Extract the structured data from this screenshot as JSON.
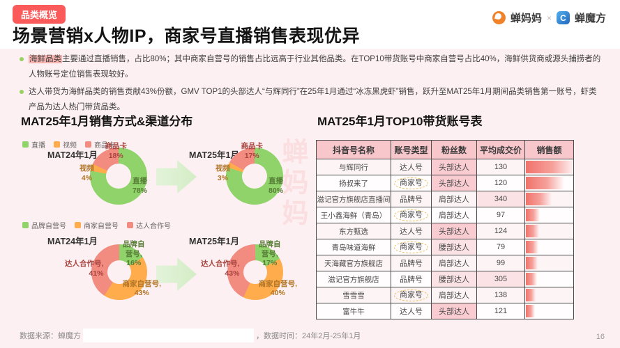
{
  "page": {
    "badge": "品类概览",
    "title": "场景营销x人物IP，商家号直播销售表现优异",
    "page_number": "16",
    "watermark": "蝉妈妈"
  },
  "brand": {
    "left_logo": "蝉妈妈",
    "separator": "×",
    "right_logo": "蝉魔方"
  },
  "bullets": [
    {
      "highlight": "海鲜品类",
      "text": "主要通过直播销售，占比80%；其中商家自营号的销售占比远高于行业其他品类。在TOP10带货账号中商家自营号占比40%，海鲜供货商或源头捕捞者的人物账号定位销售表现较好。"
    },
    {
      "highlight": "",
      "text": "达人带货为海鲜品类的销售贡献43%份额，GMV TOP1的头部达人“与辉同行”在25年1月通过“冰冻黑虎虾”销售，跃升至MAT25年1月期间品类销售第一账号，虾类产品为达人热门带货品类。"
    }
  ],
  "charts": {
    "section_title": "MAT25年1月销售方式&渠道分布",
    "colors": [
      "#8fd36a",
      "#ffac4d",
      "#f28b80"
    ],
    "method": {
      "legend": [
        "直播",
        "视频",
        "商品卡"
      ],
      "periods": [
        {
          "title": "MAT24年1月",
          "values": [
            78,
            4,
            18
          ],
          "label_live": "直播\n78%",
          "label_video": "视频\n4%",
          "label_card": "商品卡\n18%"
        },
        {
          "title": "MAT25年1月",
          "values": [
            80,
            3,
            17
          ],
          "label_live": "直播\n80%",
          "label_video": "视频\n3%",
          "label_card": "商品卡\n17%"
        }
      ]
    },
    "account": {
      "legend": [
        "品牌自营号",
        "商家自营号",
        "达人合作号"
      ],
      "periods": [
        {
          "title": "MAT24年1月",
          "values": [
            16,
            43,
            41
          ],
          "label_brand": "品牌自营号,\n16%",
          "label_merchant": "商家自营号,\n43%",
          "label_influencer": "达人合作号,\n41%"
        },
        {
          "title": "MAT25年1月",
          "values": [
            17,
            40,
            43
          ],
          "label_brand": "品牌自营号,\n17%",
          "label_merchant": "商家自营号,\n40%",
          "label_influencer": "达人合作号,\n43%"
        }
      ]
    }
  },
  "table": {
    "section_title": "MAT25年1月TOP10带货账号表",
    "headers": [
      "抖音号名称",
      "账号类型",
      "粉丝数",
      "平均成交价",
      "销售额"
    ],
    "rows": [
      {
        "name": "与辉同行",
        "type": "达人号",
        "circled": false,
        "fans": "头部达人",
        "fans_hl": "strong",
        "price": "130",
        "price_hl": false,
        "bar": 100
      },
      {
        "name": "扬叔来了",
        "type": "商家号",
        "circled": true,
        "fans": "头部达人",
        "fans_hl": "strong",
        "price": "120",
        "price_hl": false,
        "bar": 79
      },
      {
        "name": "滋记官方旗舰店直播间",
        "type": "品牌号",
        "circled": false,
        "fans": "肩部达人",
        "fans_hl": "none",
        "price": "340",
        "price_hl": true,
        "bar": 53
      },
      {
        "name": "王小鑫海鲜（青岛）",
        "type": "商家号",
        "circled": true,
        "fans": "肩部达人",
        "fans_hl": "none",
        "price": "97",
        "price_hl": false,
        "bar": 29
      },
      {
        "name": "东方甄选",
        "type": "达人号",
        "circled": false,
        "fans": "头部达人",
        "fans_hl": "strong",
        "price": "124",
        "price_hl": false,
        "bar": 28
      },
      {
        "name": "青岛味道海鲜",
        "type": "商家号",
        "circled": true,
        "fans": "腰部达人",
        "fans_hl": "light",
        "price": "79",
        "price_hl": false,
        "bar": 26
      },
      {
        "name": "天海藏官方旗舰店",
        "type": "品牌号",
        "circled": false,
        "fans": "肩部达人",
        "fans_hl": "none",
        "price": "99",
        "price_hl": false,
        "bar": 25
      },
      {
        "name": "滋记官方旗舰店",
        "type": "品牌号",
        "circled": false,
        "fans": "腰部达人",
        "fans_hl": "light",
        "price": "305",
        "price_hl": true,
        "bar": 23
      },
      {
        "name": "雪雪雪",
        "type": "商家号",
        "circled": true,
        "fans": "肩部达人",
        "fans_hl": "none",
        "price": "138",
        "price_hl": false,
        "bar": 21
      },
      {
        "name": "富牛牛",
        "type": "达人号",
        "circled": false,
        "fans": "头部达人",
        "fans_hl": "strong",
        "price": "121",
        "price_hl": false,
        "bar": 19
      }
    ]
  },
  "footer": {
    "source_prefix": "数据来源：蝉魔方",
    "time_text": "，数据时间：24年2月-25年1月"
  },
  "chart_data": [
    {
      "type": "pie",
      "title": "MAT24年1月 销售方式分布",
      "labels": [
        "直播",
        "视频",
        "商品卡"
      ],
      "values": [
        78,
        4,
        18
      ],
      "legend_position": "top"
    },
    {
      "type": "pie",
      "title": "MAT25年1月 销售方式分布",
      "labels": [
        "直播",
        "视频",
        "商品卡"
      ],
      "values": [
        80,
        3,
        17
      ],
      "legend_position": "top"
    },
    {
      "type": "pie",
      "title": "MAT24年1月 渠道账号类型分布",
      "labels": [
        "品牌自营号",
        "商家自营号",
        "达人合作号"
      ],
      "values": [
        16,
        43,
        41
      ],
      "legend_position": "top"
    },
    {
      "type": "pie",
      "title": "MAT25年1月 渠道账号类型分布",
      "labels": [
        "品牌自营号",
        "商家自营号",
        "达人合作号"
      ],
      "values": [
        17,
        40,
        43
      ],
      "legend_position": "top"
    },
    {
      "type": "table",
      "title": "MAT25年1月TOP10带货账号表",
      "columns": [
        "抖音号名称",
        "账号类型",
        "粉丝数",
        "平均成交价",
        "销售额(相对条形)"
      ],
      "rows": [
        [
          "与辉同行",
          "达人号",
          "头部达人",
          130,
          100
        ],
        [
          "扬叔来了",
          "商家号",
          "头部达人",
          120,
          79
        ],
        [
          "滋记官方旗舰店直播间",
          "品牌号",
          "肩部达人",
          340,
          53
        ],
        [
          "王小鑫海鲜（青岛）",
          "商家号",
          "肩部达人",
          97,
          29
        ],
        [
          "东方甄选",
          "达人号",
          "头部达人",
          124,
          28
        ],
        [
          "青岛味道海鲜",
          "商家号",
          "腰部达人",
          79,
          26
        ],
        [
          "天海藏官方旗舰店",
          "品牌号",
          "肩部达人",
          99,
          25
        ],
        [
          "滋记官方旗舰店",
          "品牌号",
          "腰部达人",
          305,
          23
        ],
        [
          "雪雪雪",
          "商家号",
          "肩部达人",
          138,
          21
        ],
        [
          "富牛牛",
          "达人号",
          "头部达人",
          121,
          19
        ]
      ]
    }
  ]
}
